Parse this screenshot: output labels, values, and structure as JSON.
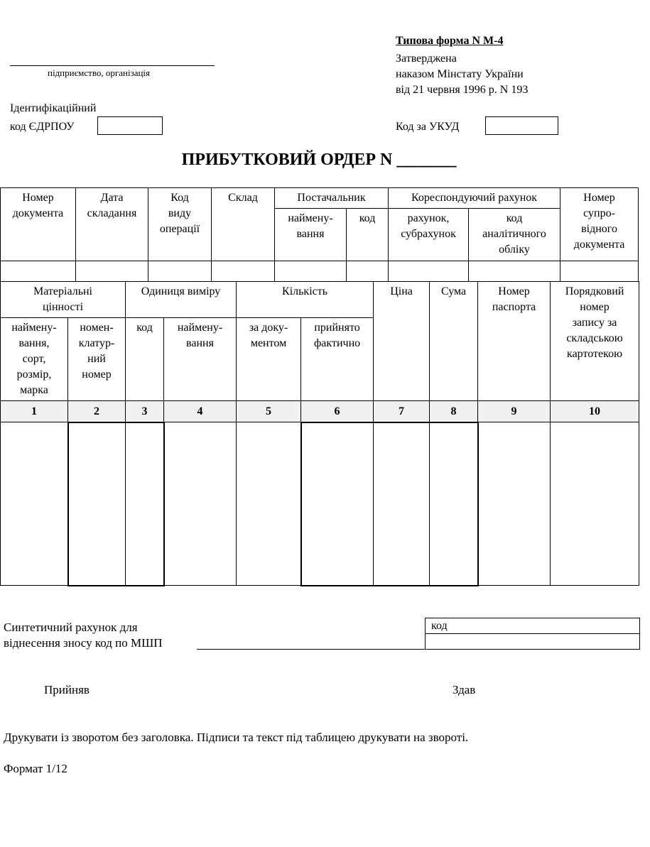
{
  "header": {
    "form_type": "Типова форма N М-4",
    "approved_lines": [
      "Затверджена",
      "наказом Мінстату України",
      "від 21 червня 1996 р. N 193"
    ],
    "enterprise_caption": "підприємство, організація",
    "edrpou_label_1": "Ідентифікаційний",
    "edrpou_label_2": "код ЄДРПОУ",
    "edrpou_value": "",
    "ukud_label": "Код за УКУД",
    "ukud_value": ""
  },
  "title": "ПРИБУТКОВИЙ ОРДЕР N _______",
  "table1": {
    "doc_number": "Номер\nдокумента",
    "date": "Дата\nскладання",
    "op_code": "Код\nвиду\nоперації",
    "warehouse": "Склад",
    "supplier": "Постачальник",
    "supplier_name": "наймену-\nвання",
    "supplier_code": "код",
    "corr_account": "Кореспондуючий рахунок",
    "account_sub": "рахунок,\nсубрахунок",
    "analytic_code": "код\nаналітичного\nобліку",
    "accomp_doc": "Номер\nсупро-\nвідного\nдокумента"
  },
  "table2": {
    "materials": "Матеріальні\nцінності",
    "unit": "Одиниця виміру",
    "quantity": "Кількість",
    "price": "Ціна",
    "sum": "Сума",
    "passport": "Номер\nпаспорта",
    "record_no": "Порядковий\nномер\nзапису за\nскладською\nкартотекою",
    "mat_name": "наймену-\nвання,\nсорт,\nрозмір,\nмарка",
    "nomen_no": "номен-\nклатур-\nний\nномер",
    "unit_code": "код",
    "unit_name": "наймену-\nвання",
    "qty_doc": "за доку-\nментом",
    "qty_fact": "прийнято\nфактично",
    "column_numbers": [
      "1",
      "2",
      "3",
      "4",
      "5",
      "6",
      "7",
      "8",
      "9",
      "10"
    ]
  },
  "footer": {
    "synthetic_1": "Синтетичний рахунок для",
    "synthetic_2": "віднесення зносу код по МШП",
    "code_label": "код",
    "received": "Прийняв",
    "handed": "Здав",
    "print_note": "Друкувати із зворотом без заголовка. Підписи та текст під таблицею друкувати на звороті.",
    "format": "Формат 1/12"
  }
}
